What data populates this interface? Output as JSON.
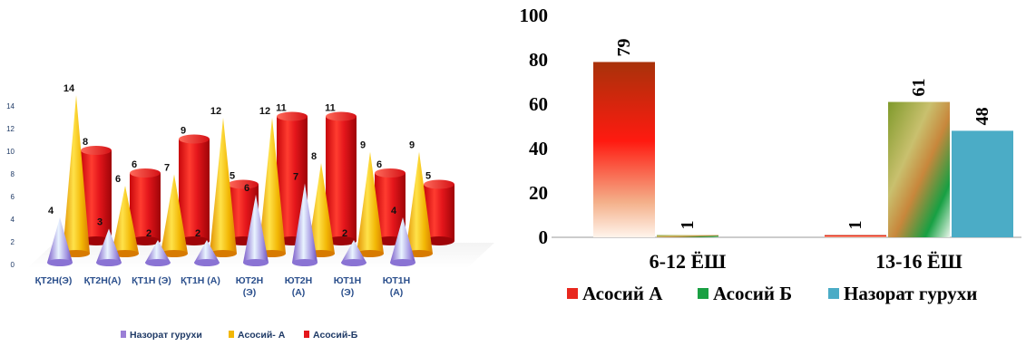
{
  "chart_data": [
    {
      "type": "bar",
      "style": "3d-cones-and-cylinders",
      "categories": [
        "ҚТ2Н(Э)",
        "ҚТ2Н(А)",
        "ҚТ1Н (Э)",
        "ҚТ1Н (А)",
        "ЮТ2Н (Э)",
        "ЮТ2Н (А)",
        "ЮТ1Н (Э)",
        "ЮТ1Н (А)"
      ],
      "category_lines": [
        [
          "ҚТ2Н(Э)"
        ],
        [
          "ҚТ2Н(А)"
        ],
        [
          "ҚТ1Н (Э)"
        ],
        [
          "ҚТ1Н (А)"
        ],
        [
          "ЮТ2Н",
          "(Э)"
        ],
        [
          "ЮТ2Н",
          "(А)"
        ],
        [
          "ЮТ1Н",
          "(Э)"
        ],
        [
          "ЮТ1Н",
          "(А)"
        ]
      ],
      "series": [
        {
          "name": "Назорат гурухи",
          "values": [
            4,
            3,
            2,
            2,
            6,
            7,
            2,
            4
          ],
          "color": "#9a7fd6",
          "shape": "cone"
        },
        {
          "name": "Асосий- А",
          "values": [
            14,
            6,
            7,
            12,
            12,
            8,
            9,
            9
          ],
          "color": "#f2b705",
          "shape": "cone"
        },
        {
          "name": "Асосий-Б",
          "values": [
            8,
            6,
            9,
            5,
            11,
            11,
            6,
            5
          ],
          "color": "#e4161b",
          "shape": "cylinder"
        }
      ],
      "yticks": [
        "0",
        "2",
        "4",
        "6",
        "8",
        "10",
        "12",
        "14"
      ],
      "ylim": [
        0,
        14
      ],
      "legend_position": "bottom"
    },
    {
      "type": "bar",
      "categories": [
        "6-12 ЁШ",
        "13-16 ЁШ"
      ],
      "series": [
        {
          "name": "Асосий А",
          "values": [
            79,
            1
          ],
          "color": "#e8281e"
        },
        {
          "name": "Асосий Б",
          "values": [
            1,
            61
          ],
          "color": "#1aa043"
        },
        {
          "name": "Назорат гурухи",
          "values": [
            0,
            48
          ],
          "color": "#4bacc6"
        }
      ],
      "yticks": [
        "0",
        "20",
        "40",
        "60",
        "80",
        "100"
      ],
      "ylim": [
        0,
        100
      ],
      "legend_position": "bottom"
    }
  ]
}
